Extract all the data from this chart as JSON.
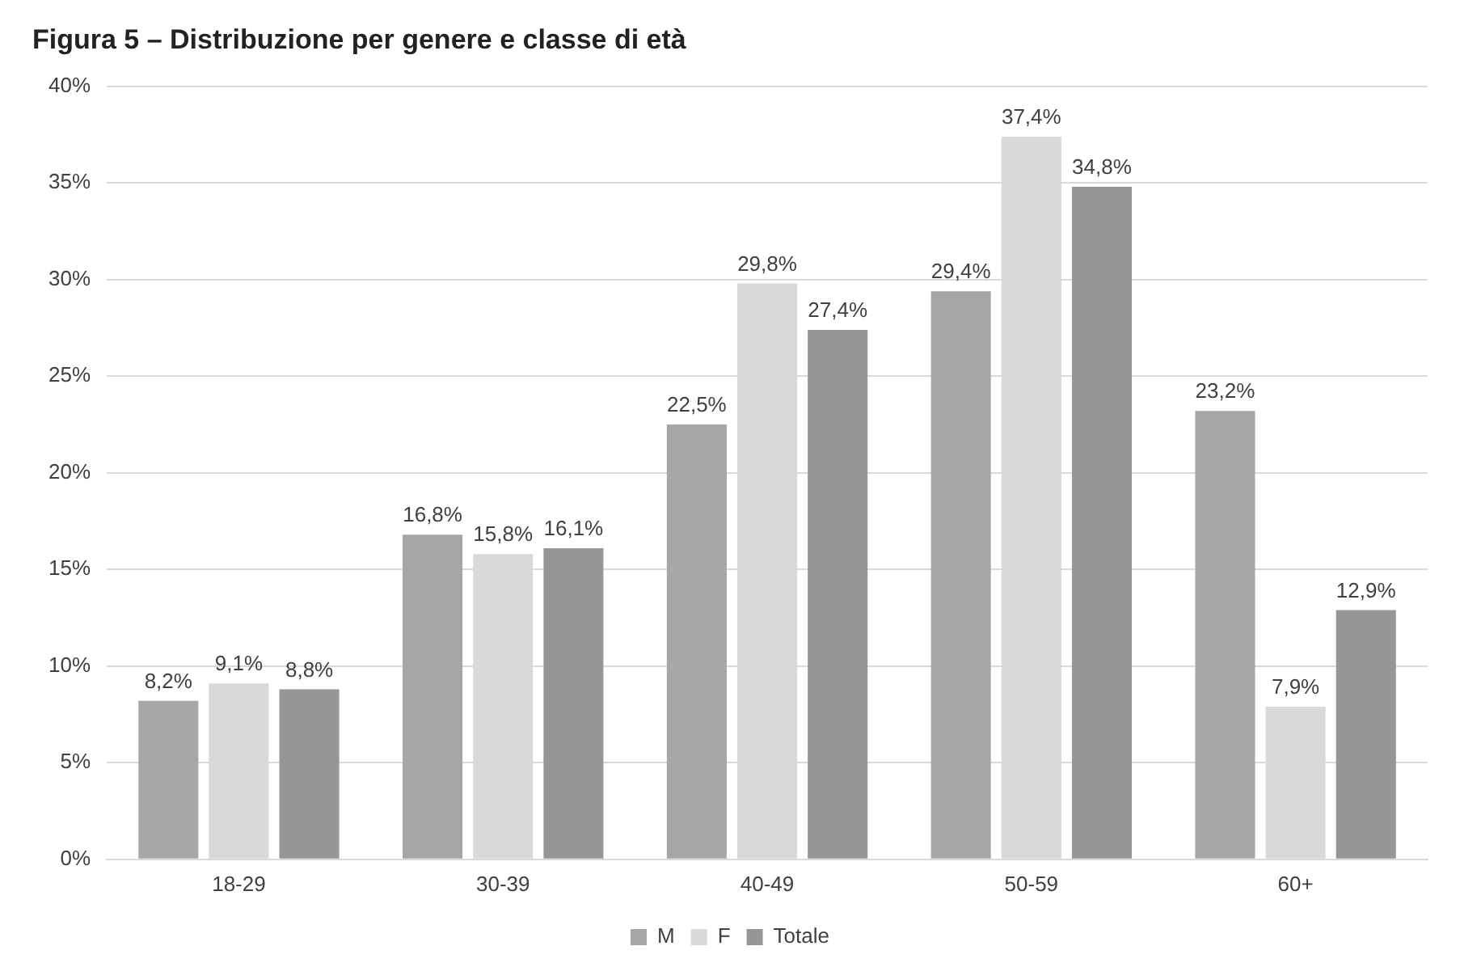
{
  "chart_data": {
    "type": "bar",
    "title": "Figura 5 – Distribuzione per genere e classe di età",
    "categories": [
      "18-29",
      "30-39",
      "40-49",
      "50-59",
      "60+"
    ],
    "series": [
      {
        "name": "M",
        "color": "#a6a6a6",
        "values": [
          8.2,
          16.8,
          22.5,
          29.4,
          23.2
        ],
        "value_labels": [
          "8,2%",
          "16,8%",
          "22,5%",
          "29,4%",
          "23,2%"
        ]
      },
      {
        "name": "F",
        "color": "#d9d9d9",
        "values": [
          9.1,
          15.8,
          29.8,
          37.4,
          7.9
        ],
        "value_labels": [
          "9,1%",
          "15,8%",
          "29,8%",
          "37,4%",
          "7,9%"
        ]
      },
      {
        "name": "Totale",
        "color": "#969696",
        "values": [
          8.8,
          16.1,
          27.4,
          34.8,
          12.9
        ],
        "value_labels": [
          "8,8%",
          "16,1%",
          "27,4%",
          "34,8%",
          "12,9%"
        ]
      }
    ],
    "ylim": [
      0,
      40
    ],
    "yticks": [
      {
        "value": 0,
        "label": "0%"
      },
      {
        "value": 5,
        "label": "5%"
      },
      {
        "value": 10,
        "label": "10%"
      },
      {
        "value": 15,
        "label": "15%"
      },
      {
        "value": 20,
        "label": "20%"
      },
      {
        "value": 25,
        "label": "25%"
      },
      {
        "value": 30,
        "label": "30%"
      },
      {
        "value": 35,
        "label": "35%"
      },
      {
        "value": 40,
        "label": "40%"
      }
    ],
    "grid": "y",
    "legend": "bottom"
  }
}
